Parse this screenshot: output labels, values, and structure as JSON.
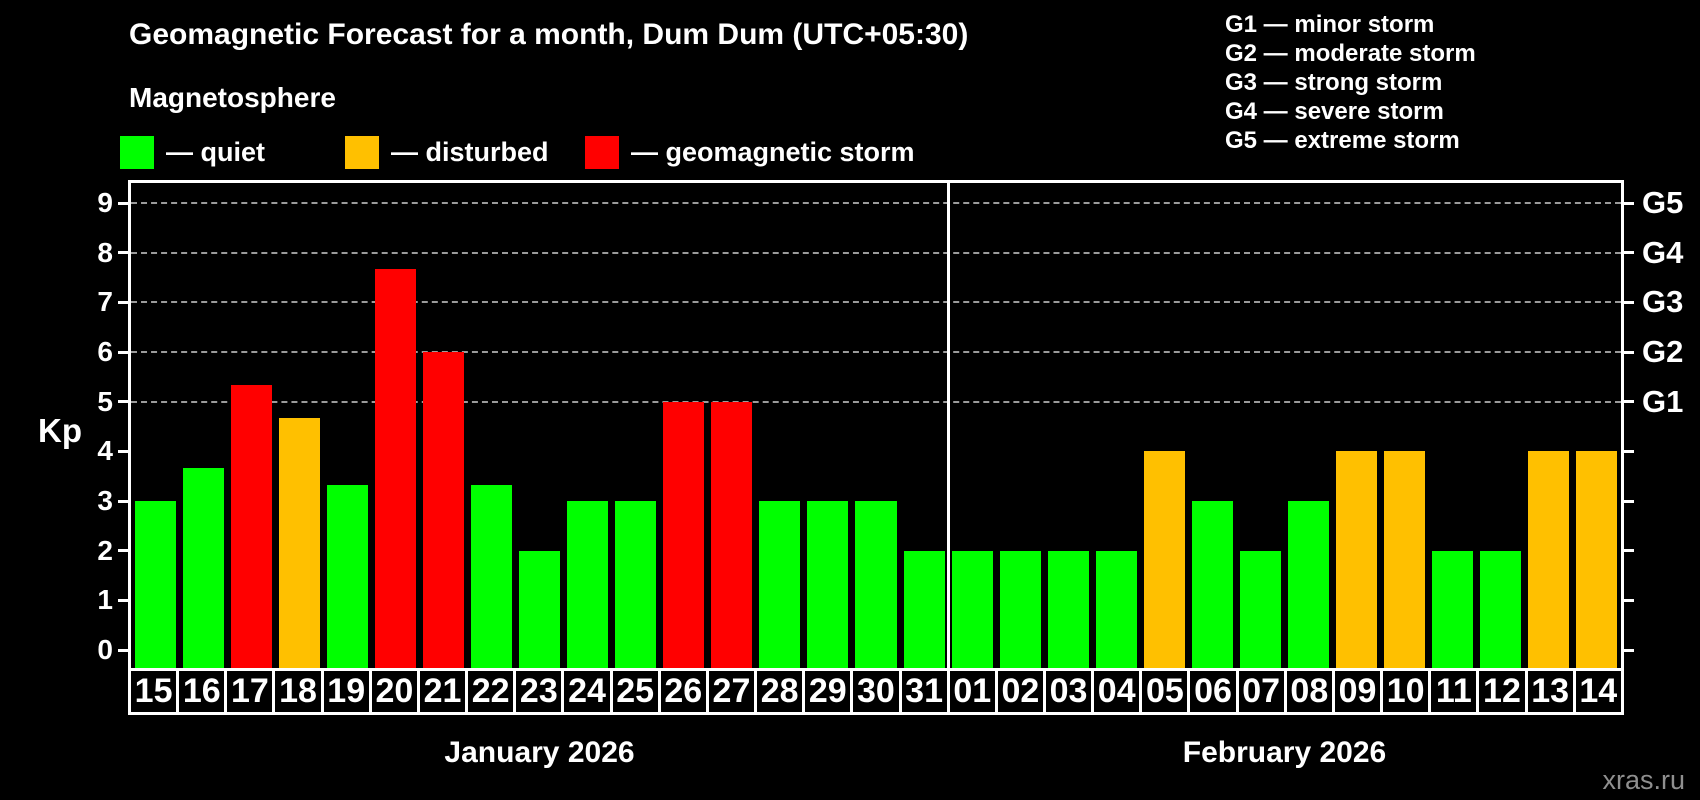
{
  "title": "Geomagnetic Forecast for a month, Dum Dum (UTC+05:30)",
  "subtitle": "Magnetosphere",
  "legend": {
    "items": [
      {
        "state": "quiet",
        "label": "— quiet",
        "color": "#00ff00"
      },
      {
        "state": "disturbed",
        "label": "— disturbed",
        "color": "#ffc000"
      },
      {
        "state": "storm",
        "label": "— geomagnetic storm",
        "color": "#ff0000"
      }
    ]
  },
  "g_scale": [
    {
      "label": "G1 — minor storm"
    },
    {
      "label": "G2 — moderate storm"
    },
    {
      "label": "G3 — strong storm"
    },
    {
      "label": "G4 — severe storm"
    },
    {
      "label": "G5 — extreme storm"
    }
  ],
  "watermark": "xras.ru",
  "chart_data": {
    "type": "bar",
    "title": "Geomagnetic Forecast for a month, Dum Dum (UTC+05:30)",
    "ylabel": "Kp",
    "ylim": [
      0,
      9
    ],
    "yticks": [
      0,
      1,
      2,
      3,
      4,
      5,
      6,
      7,
      8,
      9
    ],
    "gridlines_at": [
      5,
      6,
      7,
      8,
      9
    ],
    "grid": "dashed horizontal lines at G-storm levels only",
    "legend_position": "top-left",
    "right_axis": [
      {
        "value": 5,
        "label": "G1"
      },
      {
        "value": 6,
        "label": "G2"
      },
      {
        "value": 7,
        "label": "G3"
      },
      {
        "value": 8,
        "label": "G4"
      },
      {
        "value": 9,
        "label": "G5"
      }
    ],
    "colors": {
      "quiet": "#00ff00",
      "disturbed": "#ffc000",
      "storm": "#ff0000"
    },
    "months": [
      {
        "label": "January 2026",
        "days": 17
      },
      {
        "label": "February 2026",
        "days": 14
      }
    ],
    "days": [
      {
        "date": "15",
        "kp": 3.0,
        "state": "quiet"
      },
      {
        "date": "16",
        "kp": 3.67,
        "state": "quiet"
      },
      {
        "date": "17",
        "kp": 5.33,
        "state": "storm"
      },
      {
        "date": "18",
        "kp": 4.67,
        "state": "disturbed"
      },
      {
        "date": "19",
        "kp": 3.33,
        "state": "quiet"
      },
      {
        "date": "20",
        "kp": 7.67,
        "state": "storm"
      },
      {
        "date": "21",
        "kp": 6.0,
        "state": "storm"
      },
      {
        "date": "22",
        "kp": 3.33,
        "state": "quiet"
      },
      {
        "date": "23",
        "kp": 2.0,
        "state": "quiet"
      },
      {
        "date": "24",
        "kp": 3.0,
        "state": "quiet"
      },
      {
        "date": "25",
        "kp": 3.0,
        "state": "quiet"
      },
      {
        "date": "26",
        "kp": 5.0,
        "state": "storm"
      },
      {
        "date": "27",
        "kp": 5.0,
        "state": "storm"
      },
      {
        "date": "28",
        "kp": 3.0,
        "state": "quiet"
      },
      {
        "date": "29",
        "kp": 3.0,
        "state": "quiet"
      },
      {
        "date": "30",
        "kp": 3.0,
        "state": "quiet"
      },
      {
        "date": "31",
        "kp": 2.0,
        "state": "quiet"
      },
      {
        "date": "01",
        "kp": 2.0,
        "state": "quiet"
      },
      {
        "date": "02",
        "kp": 2.0,
        "state": "quiet"
      },
      {
        "date": "03",
        "kp": 2.0,
        "state": "quiet"
      },
      {
        "date": "04",
        "kp": 2.0,
        "state": "quiet"
      },
      {
        "date": "05",
        "kp": 4.0,
        "state": "disturbed"
      },
      {
        "date": "06",
        "kp": 3.0,
        "state": "quiet"
      },
      {
        "date": "07",
        "kp": 2.0,
        "state": "quiet"
      },
      {
        "date": "08",
        "kp": 3.0,
        "state": "quiet"
      },
      {
        "date": "09",
        "kp": 4.0,
        "state": "disturbed"
      },
      {
        "date": "10",
        "kp": 4.0,
        "state": "disturbed"
      },
      {
        "date": "11",
        "kp": 2.0,
        "state": "quiet"
      },
      {
        "date": "12",
        "kp": 2.0,
        "state": "quiet"
      },
      {
        "date": "13",
        "kp": 4.0,
        "state": "disturbed"
      },
      {
        "date": "14",
        "kp": 4.0,
        "state": "disturbed"
      }
    ]
  }
}
